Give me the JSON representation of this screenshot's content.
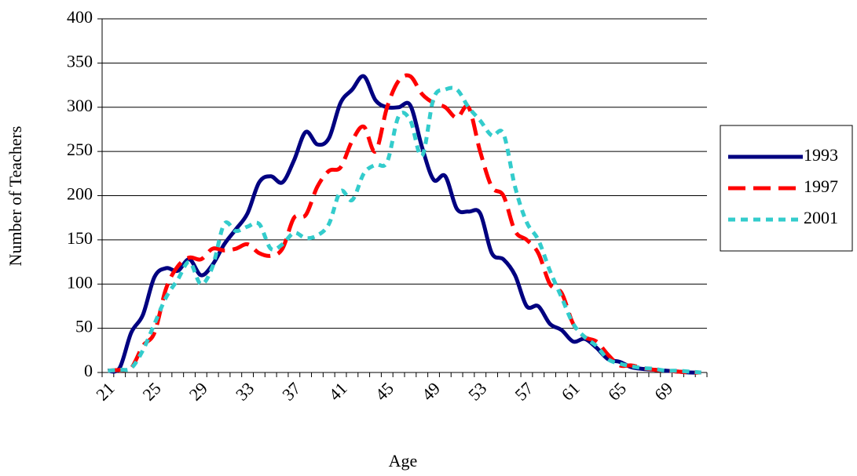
{
  "chart_data": {
    "type": "line",
    "y_label": "Number of Teachers",
    "x_label": "Age",
    "categories": [
      "21",
      null,
      null,
      null,
      "25",
      null,
      null,
      null,
      "29",
      null,
      null,
      null,
      "33",
      null,
      null,
      null,
      "37",
      null,
      null,
      null,
      "41",
      null,
      null,
      null,
      "45",
      null,
      null,
      null,
      "49",
      null,
      null,
      null,
      "53",
      null,
      null,
      null,
      "57",
      null,
      null,
      null,
      "61",
      null,
      null,
      null,
      "65",
      null,
      null,
      null,
      "69",
      null,
      null,
      null
    ],
    "series": [
      {
        "name": "1993",
        "color": "#000080",
        "line_style": "solid",
        "values": [
          2,
          5,
          45,
          65,
          108,
          118,
          115,
          128,
          110,
          122,
          145,
          162,
          180,
          215,
          222,
          215,
          240,
          272,
          258,
          265,
          305,
          320,
          335,
          308,
          300,
          300,
          302,
          255,
          218,
          222,
          185,
          182,
          180,
          135,
          128,
          110,
          75,
          75,
          55,
          48,
          35,
          38,
          28,
          15,
          12,
          6,
          4,
          3,
          2,
          1,
          0,
          0
        ]
      },
      {
        "name": "1997",
        "color": "#ff0000",
        "line_style": "dashed",
        "values": [
          2,
          3,
          5,
          30,
          45,
          95,
          120,
          130,
          128,
          140,
          138,
          140,
          145,
          135,
          132,
          140,
          175,
          178,
          210,
          228,
          232,
          262,
          278,
          250,
          300,
          330,
          335,
          315,
          305,
          300,
          288,
          300,
          250,
          210,
          200,
          160,
          150,
          135,
          100,
          90,
          55,
          40,
          35,
          20,
          8,
          8,
          5,
          3,
          2,
          1,
          0,
          0
        ]
      },
      {
        "name": "2001",
        "color": "#33cccc",
        "line_style": "dotted",
        "values": [
          2,
          3,
          5,
          25,
          55,
          85,
          105,
          125,
          100,
          120,
          168,
          160,
          165,
          168,
          140,
          145,
          158,
          152,
          155,
          168,
          205,
          195,
          225,
          235,
          238,
          290,
          285,
          245,
          310,
          320,
          320,
          300,
          285,
          268,
          270,
          210,
          170,
          150,
          115,
          85,
          55,
          40,
          30,
          15,
          10,
          7,
          5,
          4,
          2,
          2,
          1,
          0
        ]
      }
    ],
    "ylim": [
      0,
      400
    ],
    "yticks": [
      0,
      50,
      100,
      150,
      200,
      250,
      300,
      350,
      400
    ],
    "grid": true,
    "legend": "right"
  }
}
